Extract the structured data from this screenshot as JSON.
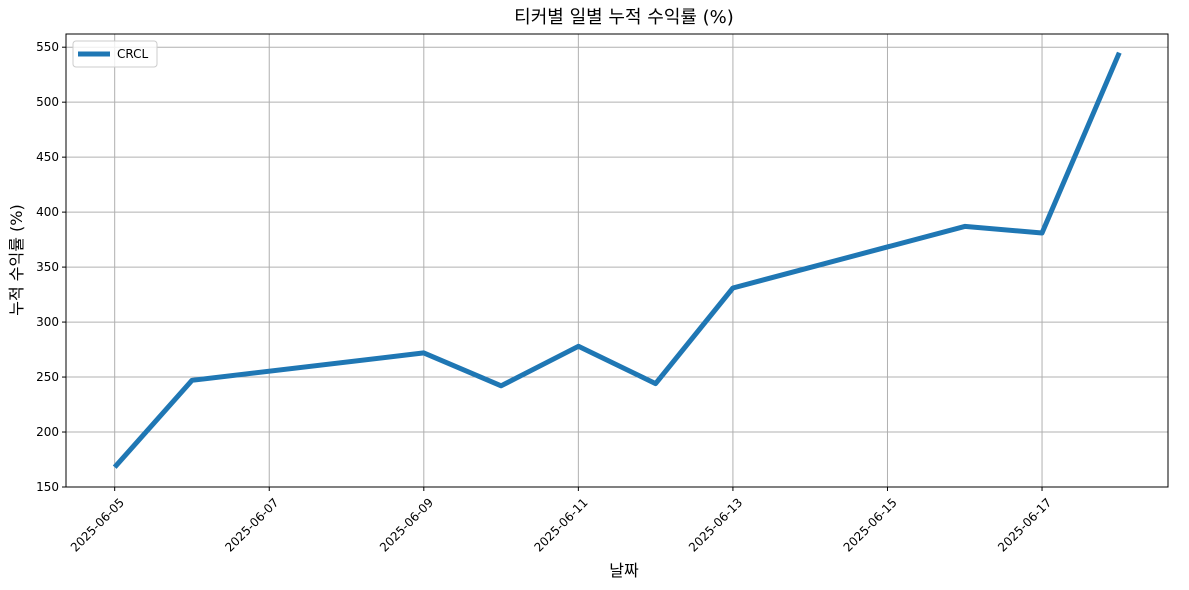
{
  "chart_data": {
    "type": "line",
    "title": "티커별 일별 누적 수익률 (%)",
    "xlabel": "날짜",
    "ylabel": "누적 수익률 (%)",
    "x_ticks": [
      "2025-06-05",
      "2025-06-07",
      "2025-06-09",
      "2025-06-11",
      "2025-06-13",
      "2025-06-15",
      "2025-06-17"
    ],
    "y_ticks": [
      150,
      200,
      250,
      300,
      350,
      400,
      450,
      500,
      550
    ],
    "xlim": [
      "2025-06-04",
      "2025-06-18"
    ],
    "ylim": [
      150,
      562
    ],
    "grid": true,
    "legend_position": "top-left",
    "series": [
      {
        "name": "CRCL",
        "color": "#1f77b4",
        "x": [
          "2025-06-05",
          "2025-06-06",
          "2025-06-09",
          "2025-06-10",
          "2025-06-11",
          "2025-06-12",
          "2025-06-13",
          "2025-06-16",
          "2025-06-17",
          "2025-06-18"
        ],
        "y": [
          168,
          247,
          272,
          242,
          278,
          244,
          331,
          387,
          381,
          545
        ]
      }
    ]
  }
}
